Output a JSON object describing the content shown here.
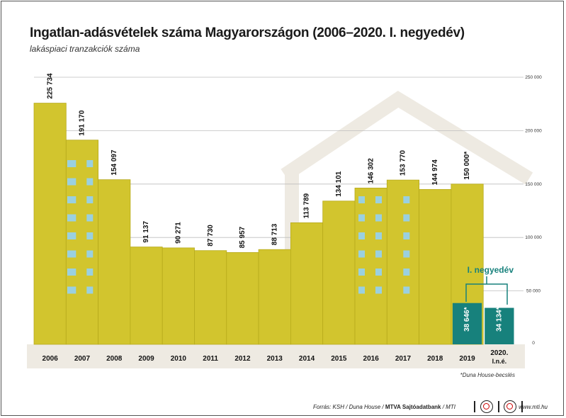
{
  "title": "Ingatlan-adásvételek száma Magyarországon (2006–2020. I. negyedév)",
  "subtitle": "lakáspiaci tranzakciók száma",
  "footnote": "*Duna House-becslés",
  "source": {
    "prefix": "Forrás: KSH / Duna House / ",
    "bold": "MTVA Sajtóadatbank",
    "suffix": " / MTI"
  },
  "website": "www.mti.hu",
  "colors": {
    "bar": "#d2c52e",
    "bar_edge": "#b7aa1c",
    "quarter_bar": "#17817c",
    "quarter_label": "#17817c",
    "window": "#9ad0e0",
    "house_outline": "#eeeae2",
    "axis_band": "#eeeae2",
    "grid": "#bdbdbd"
  },
  "chart_data": {
    "type": "bar",
    "title": "Ingatlan-adásvételek száma Magyarországon (2006–2020. I. negyedév)",
    "subtitle": "lakáspiaci tranzakciók száma",
    "categories": [
      "2006",
      "2007",
      "2008",
      "2009",
      "2010",
      "2011",
      "2012",
      "2013",
      "2014",
      "2015",
      "2016",
      "2017",
      "2018",
      "2019",
      "2020. I.n.é."
    ],
    "series": [
      {
        "values": [
          225734,
          191170,
          154097,
          91137,
          90271,
          87730,
          85957,
          88713,
          113789,
          134101,
          146302,
          153770,
          144974,
          150000,
          null
        ],
        "labels": [
          "225 734",
          "191 170",
          "154 097",
          "91 137",
          "90 271",
          "87 730",
          "85 957",
          "88 713",
          "113 789",
          "134 101",
          "146 302",
          "153 770",
          "144 974",
          "150 000*",
          ""
        ]
      },
      {
        "name": "I. negyedév",
        "values": [
          null,
          null,
          null,
          null,
          null,
          null,
          null,
          null,
          null,
          null,
          null,
          null,
          null,
          38646,
          34134
        ],
        "labels": [
          "",
          "",
          "",
          "",
          "",
          "",
          "",
          "",
          "",
          "",
          "",
          "",
          "",
          "38 646*",
          "34 134*"
        ]
      }
    ],
    "ylim": [
      0,
      250000
    ],
    "yticks": [
      0,
      50000,
      100000,
      150000,
      200000,
      250000
    ],
    "ytick_labels": [
      "0",
      "50 000",
      "100 000",
      "150 000",
      "200 000",
      "250 000"
    ],
    "y_axis_side": "right",
    "grid": true
  }
}
